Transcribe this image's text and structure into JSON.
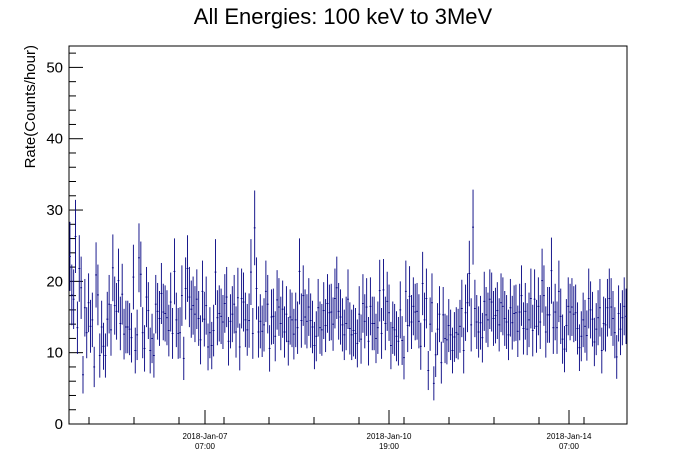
{
  "chart_data": {
    "type": "scatter",
    "title": "All Energies:  100 keV to 3MeV",
    "xlabel": "",
    "ylabel": "Rate(Counts/hour)",
    "ylim": [
      0,
      53
    ],
    "y_ticks": [
      0,
      10,
      20,
      30,
      40,
      50
    ],
    "x_tick_labels": [
      {
        "line1": "2018-Jan-07",
        "line2": "07:00"
      },
      {
        "line1": "2018-Jan-10",
        "line2": "19:00"
      },
      {
        "line1": "2018-Jan-14",
        "line2": "07:00"
      }
    ],
    "x_range": [
      "2018-Jan-04 18:00",
      "2018-Jan-15 05:00"
    ],
    "grid": false,
    "legend": "none",
    "marker_color": "#000080",
    "error_bars": "vertical, ± sqrt(counts) per hourly bin",
    "series": [
      {
        "name": "",
        "values": [
          23.5,
          18.1,
          17.5,
          26.3,
          13.5,
          21.8,
          19.1,
          6.9,
          16.3,
          12.8,
          17.0,
          13.7,
          14.6,
          8.0,
          20.9,
          18.1,
          9.6,
          13.6,
          10.9,
          9.6,
          14.7,
          16.8,
          13.2,
          21.9,
          16.6,
          15.8,
          20.1,
          14.1,
          18.2,
          12.6,
          13.6,
          13.6,
          13.3,
          12.1,
          20.6,
          10.3,
          12.5,
          23.3,
          21.0,
          12.8,
          10.6,
          17.8,
          15.9,
          10.3,
          12.0,
          9.6,
          16.8,
          15.8,
          14.8,
          18.3,
          15.7,
          15.5,
          14.9,
          13.1,
          17.1,
          12.7,
          21.4,
          14.6,
          12.7,
          12.8,
          18.0,
          9.2,
          19.0,
          21.8,
          17.8,
          16.1,
          16.6,
          15.4,
          17.5,
          14.8,
          11.8,
          18.6,
          14.7,
          16.6,
          10.8,
          12.8,
          11.0,
          13.1,
          21.3,
          14.9,
          15.5,
          15.1,
          14.3,
          16.9,
          17.8,
          11.6,
          14.4,
          15.4,
          16.8,
          12.9,
          17.7,
          10.8,
          17.6,
          17.1,
          14.6,
          13.2,
          14.5,
          21.3,
          12.7,
          27.5,
          19.0,
          12.9,
          14.4,
          13.0,
          13.9,
          18.6,
          16.8,
          10.6,
          15.0,
          15.1,
          12.3,
          17.4,
          16.4,
          14.1,
          16.1,
          12.9,
          15.4,
          11.6,
          15.0,
          14.6,
          12.6,
          14.6,
          13.5,
          21.4,
          14.5,
          18.0,
          15.0,
          14.4,
          16.4,
          14.5,
          13.6,
          11.0,
          12.3,
          16.3,
          13.5,
          13.2,
          15.9,
          13.8,
          16.9,
          15.6,
          15.7,
          14.0,
          17.6,
          19.1,
          15.8,
          15.0,
          13.9,
          12.5,
          14.1,
          17.5,
          13.4,
          12.5,
          13.1,
          12.7,
          11.3,
          15.4,
          11.9,
          16.9,
          14.4,
          16.4,
          11.6,
          16.5,
          14.1,
          14.1,
          12.0,
          13.5,
          18.7,
          12.7,
          18.8,
          14.1,
          17.2,
          15.6,
          11.0,
          13.5,
          13.2,
          12.3,
          11.6,
          16.0,
          11.7,
          9.3,
          18.6,
          13.8,
          17.9,
          14.3,
          16.5,
          15.7,
          15.8,
          14.4,
          10.9,
          19.7,
          14.6,
          17.6,
          7.5,
          14.0,
          17.0,
          5.7,
          9.7,
          13.3,
          15.4,
          8.6,
          15.3,
          12.0,
          11.8,
          13.8,
          12.5,
          10.3,
          12.2,
          12.8,
          12.6,
          13.7,
          16.2,
          10.3,
          15.6,
          17.0,
          21.1,
          13.9,
          27.6,
          16.2,
          14.3,
          12.9,
          14.2,
          12.1,
          17.2,
          15.3,
          14.6,
          17.5,
          17.1,
          14.8,
          15.2,
          15.9,
          13.9,
          17.0,
          16.5,
          14.8,
          14.3,
          12.5,
          16.3,
          14.2,
          15.5,
          15.6,
          13.0,
          15.7,
          18.0,
          13.4,
          15.8,
          13.3,
          14.6,
          17.6,
          13.1,
          17.5,
          13.7,
          16.5,
          14.3,
          20.1,
          18.0,
          12.9,
          15.3,
          15.3,
          21.5,
          13.5,
          15.7,
          13.5,
          18.6,
          15.1,
          11.9,
          10.5,
          13.8,
          16.5,
          15.7,
          16.4,
          15.4,
          15.6,
          13.4,
          10.7,
          12.3,
          14.6,
          13.7,
          12.4,
          17.6,
          16.0,
          14.7,
          11.5,
          13.3,
          14.9,
          16.3,
          10.3,
          14.1,
          13.9,
          16.3,
          17.6,
          16.4,
          14.8,
          12.8,
          9.4,
          15.5,
          13.3,
          14.9,
          16.5,
          15.1
        ]
      }
    ]
  }
}
